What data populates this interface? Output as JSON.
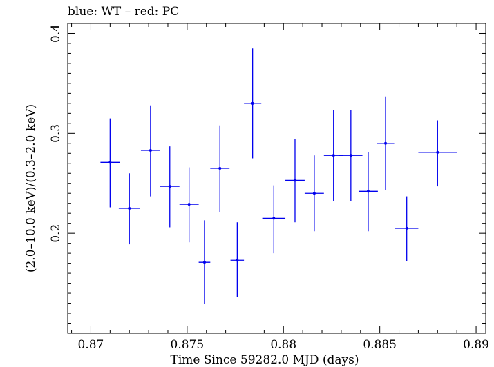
{
  "chart_data": {
    "type": "scatter",
    "title": "blue: WT – red: PC",
    "xlabel": "Time Since 59282.0 MJD (days)",
    "ylabel": "(2.0–10.0 keV)/(0.3–2.0 keV)",
    "xlim": [
      0.8688,
      0.8905
    ],
    "ylim": [
      0.1,
      0.41
    ],
    "x_ticks": [
      "0.87",
      "0.875",
      "0.88",
      "0.885",
      "0.89"
    ],
    "y_ticks": [
      "0.2",
      "0.3",
      "0.4"
    ],
    "x_tick_values": [
      0.87,
      0.875,
      0.88,
      0.885,
      0.89
    ],
    "y_tick_values": [
      0.2,
      0.3,
      0.4
    ],
    "grid": false,
    "series": [
      {
        "color": "#0000ee",
        "points": [
          {
            "x": 0.871,
            "xerr": 0.0005,
            "y": 0.271,
            "ylo": 0.226,
            "yhi": 0.315
          },
          {
            "x": 0.872,
            "xerr": 0.00055,
            "y": 0.225,
            "ylo": 0.189,
            "yhi": 0.26
          },
          {
            "x": 0.8731,
            "xerr": 0.0005,
            "y": 0.283,
            "ylo": 0.237,
            "yhi": 0.328
          },
          {
            "x": 0.8741,
            "xerr": 0.0005,
            "y": 0.247,
            "ylo": 0.206,
            "yhi": 0.287
          },
          {
            "x": 0.8751,
            "xerr": 0.0005,
            "y": 0.229,
            "ylo": 0.191,
            "yhi": 0.266
          },
          {
            "x": 0.8759,
            "xerr": 0.0003,
            "y": 0.171,
            "ylo": 0.129,
            "yhi": 0.213
          },
          {
            "x": 0.8767,
            "xerr": 0.0005,
            "y": 0.265,
            "ylo": 0.221,
            "yhi": 0.308
          },
          {
            "x": 0.8776,
            "xerr": 0.00035,
            "y": 0.173,
            "ylo": 0.136,
            "yhi": 0.211
          },
          {
            "x": 0.8784,
            "xerr": 0.00045,
            "y": 0.33,
            "ylo": 0.275,
            "yhi": 0.385
          },
          {
            "x": 0.8795,
            "xerr": 0.0006,
            "y": 0.215,
            "ylo": 0.18,
            "yhi": 0.248
          },
          {
            "x": 0.8806,
            "xerr": 0.0005,
            "y": 0.253,
            "ylo": 0.211,
            "yhi": 0.294
          },
          {
            "x": 0.8816,
            "xerr": 0.0005,
            "y": 0.24,
            "ylo": 0.202,
            "yhi": 0.278
          },
          {
            "x": 0.8826,
            "xerr": 0.0005,
            "y": 0.278,
            "ylo": 0.232,
            "yhi": 0.323
          },
          {
            "x": 0.8835,
            "xerr": 0.0006,
            "y": 0.278,
            "ylo": 0.232,
            "yhi": 0.323
          },
          {
            "x": 0.8844,
            "xerr": 0.0005,
            "y": 0.242,
            "ylo": 0.202,
            "yhi": 0.281
          },
          {
            "x": 0.8853,
            "xerr": 0.00045,
            "y": 0.29,
            "ylo": 0.243,
            "yhi": 0.337
          },
          {
            "x": 0.8864,
            "xerr": 0.0006,
            "y": 0.205,
            "ylo": 0.172,
            "yhi": 0.237
          },
          {
            "x": 0.888,
            "xerr": 0.001,
            "y": 0.281,
            "ylo": 0.247,
            "yhi": 0.313
          }
        ]
      }
    ]
  }
}
